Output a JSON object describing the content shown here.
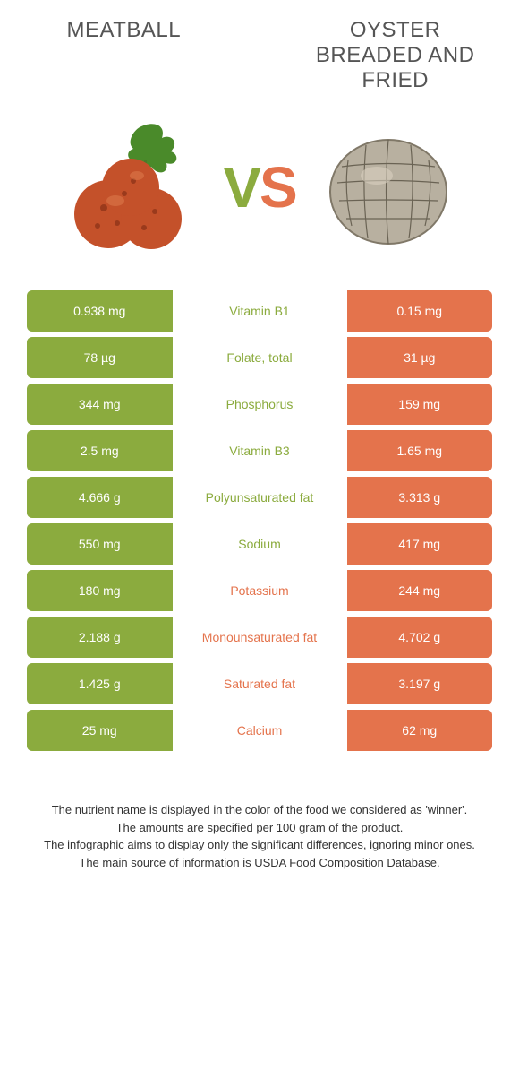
{
  "left_food": "Meatball",
  "right_food": "Oyster breaded and fried",
  "vs_v": "V",
  "vs_s": "S",
  "colors": {
    "green": "#8bab3e",
    "orange": "#e4734c",
    "row_gap_bg": "#ffffff"
  },
  "rows": [
    {
      "nutrient": "Vitamin B1",
      "left": "0.938 mg",
      "right": "0.15 mg",
      "winner": "left"
    },
    {
      "nutrient": "Folate, total",
      "left": "78 µg",
      "right": "31 µg",
      "winner": "left"
    },
    {
      "nutrient": "Phosphorus",
      "left": "344 mg",
      "right": "159 mg",
      "winner": "left"
    },
    {
      "nutrient": "Vitamin B3",
      "left": "2.5 mg",
      "right": "1.65 mg",
      "winner": "left"
    },
    {
      "nutrient": "Polyunsaturated fat",
      "left": "4.666 g",
      "right": "3.313 g",
      "winner": "left"
    },
    {
      "nutrient": "Sodium",
      "left": "550 mg",
      "right": "417 mg",
      "winner": "left"
    },
    {
      "nutrient": "Potassium",
      "left": "180 mg",
      "right": "244 mg",
      "winner": "right"
    },
    {
      "nutrient": "Monounsaturated fat",
      "left": "2.188 g",
      "right": "4.702 g",
      "winner": "right"
    },
    {
      "nutrient": "Saturated fat",
      "left": "1.425 g",
      "right": "3.197 g",
      "winner": "right"
    },
    {
      "nutrient": "Calcium",
      "left": "25 mg",
      "right": "62 mg",
      "winner": "right"
    }
  ],
  "footer_lines": [
    "The nutrient name is displayed in the color of the food we considered as 'winner'.",
    "The amounts are specified per 100 gram of the product.",
    "The infographic aims to display only the significant differences, ignoring minor ones.",
    "The main source of information is USDA Food Composition Database."
  ]
}
